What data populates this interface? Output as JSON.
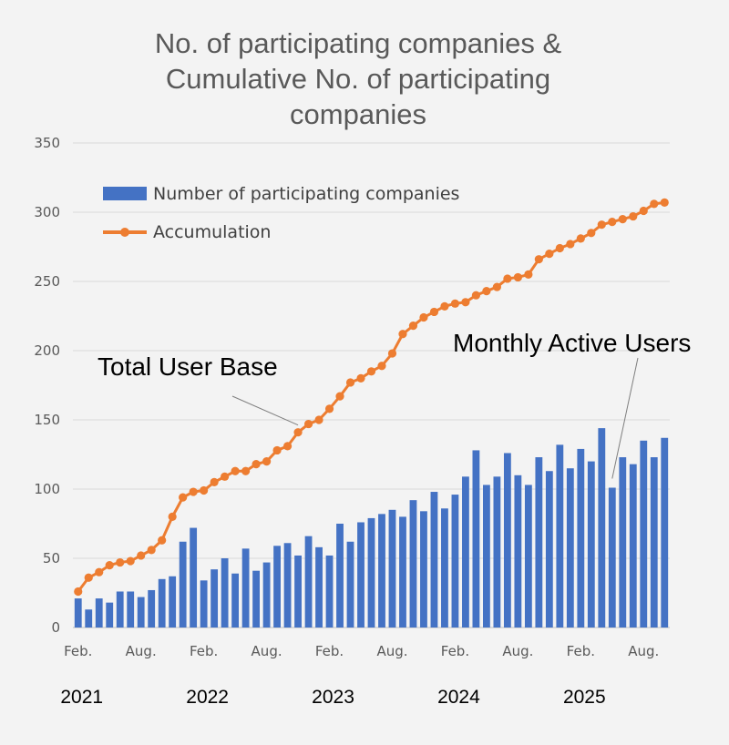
{
  "chart_data": {
    "type": "bar",
    "title_lines": [
      "No. of participating companies &",
      "Cumulative No. of participating",
      "companies"
    ],
    "ylim": [
      0,
      350
    ],
    "y_ticks": [
      0,
      50,
      100,
      150,
      200,
      250,
      300,
      350
    ],
    "grid": true,
    "legend_position": "top-left",
    "x_tick_labels": [
      {
        "index": 0,
        "label": "Feb."
      },
      {
        "index": 6,
        "label": "Aug."
      },
      {
        "index": 12,
        "label": "Feb."
      },
      {
        "index": 18,
        "label": "Aug."
      },
      {
        "index": 24,
        "label": "Feb."
      },
      {
        "index": 30,
        "label": "Aug."
      },
      {
        "index": 36,
        "label": "Feb."
      },
      {
        "index": 42,
        "label": "Aug."
      },
      {
        "index": 48,
        "label": "Feb."
      },
      {
        "index": 54,
        "label": "Aug."
      }
    ],
    "year_labels": [
      {
        "index": 0,
        "label": "2021"
      },
      {
        "index": 12,
        "label": "2022"
      },
      {
        "index": 24,
        "label": "2023"
      },
      {
        "index": 36,
        "label": "2024"
      },
      {
        "index": 48,
        "label": "2025"
      }
    ],
    "series": [
      {
        "name": "Number of participating companies",
        "kind": "bar",
        "color": "#4472c4",
        "values": [
          21,
          13,
          21,
          18,
          26,
          26,
          22,
          27,
          35,
          37,
          62,
          72,
          34,
          42,
          50,
          39,
          57,
          41,
          47,
          59,
          61,
          52,
          66,
          58,
          52,
          75,
          62,
          76,
          79,
          82,
          85,
          80,
          92,
          84,
          98,
          86,
          96,
          109,
          128,
          103,
          109,
          126,
          110,
          103,
          123,
          113,
          132,
          115,
          129,
          120,
          144,
          101,
          123,
          118,
          135,
          123,
          137
        ]
      },
      {
        "name": "Accumulation",
        "kind": "line",
        "color": "#ed7d31",
        "values": [
          26,
          36,
          40,
          45,
          47,
          48,
          52,
          56,
          63,
          80,
          94,
          98,
          99,
          105,
          109,
          113,
          113,
          118,
          120,
          128,
          131,
          141,
          147,
          150,
          158,
          167,
          177,
          180,
          185,
          189,
          198,
          212,
          218,
          224,
          228,
          232,
          234,
          235,
          240,
          243,
          246,
          252,
          253,
          255,
          266,
          270,
          274,
          277,
          281,
          285,
          291,
          293,
          295,
          297,
          301,
          306,
          307
        ]
      }
    ],
    "annotations": [
      {
        "text": "Total User Base",
        "target_series": 1,
        "target_index": 21
      },
      {
        "text": "Monthly Active Users",
        "target_series": 0,
        "target_index": 51
      }
    ]
  }
}
